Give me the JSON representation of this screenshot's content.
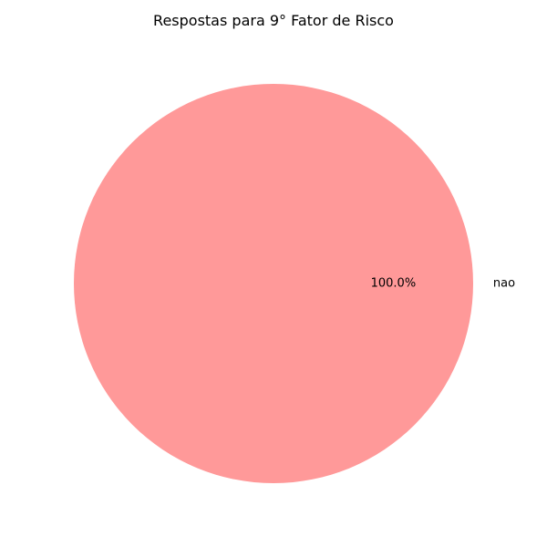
{
  "chart_data": {
    "type": "pie",
    "title": "Respostas para 9° Fator de Risco",
    "categories": [
      "nao"
    ],
    "values": [
      100.0
    ],
    "percent_labels": [
      "100.0%"
    ],
    "colors": [
      "#ff9999"
    ],
    "legend": "none",
    "grid": false
  }
}
